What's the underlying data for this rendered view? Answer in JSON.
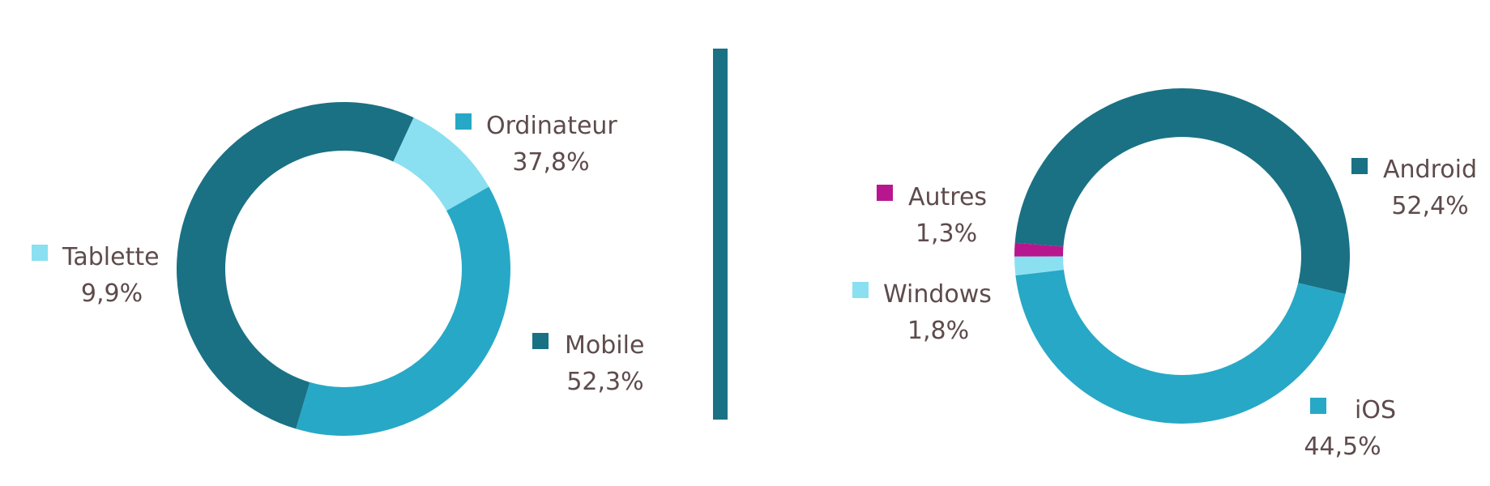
{
  "colors": {
    "text": "#5e4b4b",
    "divider": "#1a7184",
    "dark_teal": "#1a7184",
    "mid_blue": "#27a8c6",
    "light_cyan": "#8ae0f0",
    "magenta": "#b8168f"
  },
  "chart_data": [
    {
      "type": "pie",
      "variant": "donut",
      "title": "",
      "slices": [
        {
          "label": "Ordinateur",
          "value": 37.8,
          "display": "37,8%",
          "color": "#27a8c6"
        },
        {
          "label": "Mobile",
          "value": 52.3,
          "display": "52,3%",
          "color": "#1a7184"
        },
        {
          "label": "Tablette",
          "value": 9.9,
          "display": "9,9%",
          "color": "#8ae0f0"
        }
      ]
    },
    {
      "type": "pie",
      "variant": "donut",
      "title": "",
      "slices": [
        {
          "label": "Android",
          "value": 52.4,
          "display": "52,4%",
          "color": "#1a7184"
        },
        {
          "label": "iOS",
          "value": 44.5,
          "display": "44,5%",
          "color": "#27a8c6"
        },
        {
          "label": "Windows",
          "value": 1.8,
          "display": "1,8%",
          "color": "#8ae0f0"
        },
        {
          "label": "Autres",
          "value": 1.3,
          "display": "1,3%",
          "color": "#b8168f"
        }
      ]
    }
  ]
}
